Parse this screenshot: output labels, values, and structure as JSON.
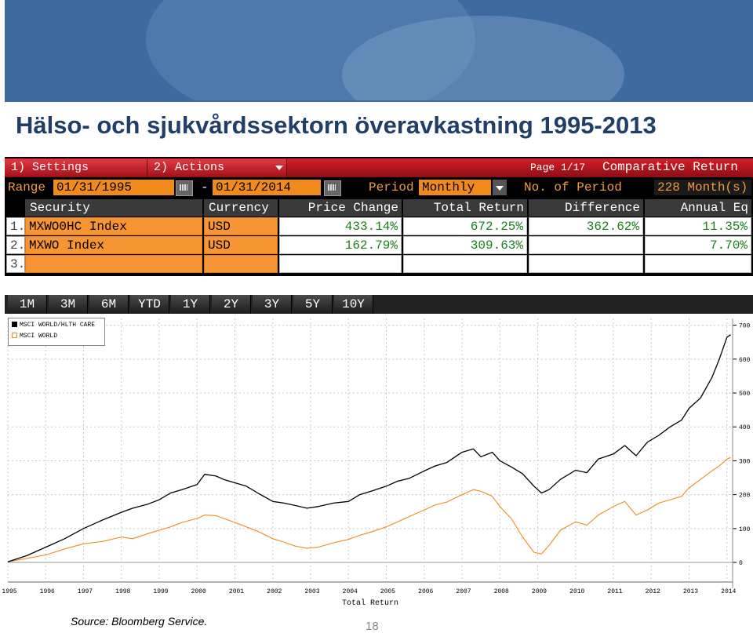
{
  "slide": {
    "title": "Hälso- och sjukvårdssektorn överavkastning 1995-2013",
    "source": "Source: Bloomberg Service.",
    "page_number": "18"
  },
  "terminal": {
    "menu": {
      "settings": "1) Settings",
      "actions": "2) Actions",
      "page": "Page 1/17",
      "function_title": "Comparative Return"
    },
    "range_label": "Range",
    "start_date": "01/31/1995",
    "date_separator": "-",
    "end_date": "01/31/2014",
    "period_label": "Period",
    "period_value": "Monthly",
    "periods_label": "No. of Period",
    "periods_value": "228 Month(s)",
    "columns": [
      "Security",
      "Currency",
      "Price Change",
      "Total Return",
      "Difference",
      "Annual Eq"
    ],
    "rows": [
      {
        "num": "1.",
        "security": "MXWO0HC Index",
        "currency": "USD",
        "price_change": "433.14%",
        "total_return": "672.25%",
        "difference": "362.62%",
        "annual_eq": "11.35%"
      },
      {
        "num": "2.",
        "security": "MXWO Index",
        "currency": "USD",
        "price_change": "162.79%",
        "total_return": "309.63%",
        "difference": "",
        "annual_eq": "7.70%"
      },
      {
        "num": "3.",
        "security": "",
        "currency": "",
        "price_change": "",
        "total_return": "",
        "difference": "",
        "annual_eq": ""
      }
    ],
    "tabs": [
      "1M",
      "3M",
      "6M",
      "YTD",
      "1Y",
      "2Y",
      "3Y",
      "5Y",
      "10Y"
    ]
  },
  "chart_data": {
    "type": "line",
    "xlabel": "Total Return",
    "x_ticks": [
      "1995",
      "1996",
      "1997",
      "1998",
      "1999",
      "2000",
      "2001",
      "2002",
      "2003",
      "2004",
      "2005",
      "2006",
      "2007",
      "2008",
      "2009",
      "2010",
      "2011",
      "2012",
      "2013",
      "2014"
    ],
    "y_ticks": [
      0,
      100,
      200,
      300,
      400,
      500,
      600,
      700
    ],
    "ylim": [
      -30,
      720
    ],
    "xlim": [
      1995.0,
      2014.15
    ],
    "grid": true,
    "legend_position": "top-left",
    "series": [
      {
        "name": "MSCI WORLD/HLTH CARE",
        "color": "#000000",
        "x": [
          1995.0,
          1995.5,
          1996.0,
          1996.5,
          1997.0,
          1997.5,
          1998.0,
          1998.3,
          1998.7,
          1999.0,
          1999.3,
          1999.6,
          2000.0,
          2000.2,
          2000.5,
          2000.7,
          2001.0,
          2001.3,
          2001.6,
          2002.0,
          2002.3,
          2002.6,
          2002.9,
          2003.2,
          2003.6,
          2004.0,
          2004.3,
          2004.6,
          2005.0,
          2005.3,
          2005.6,
          2006.0,
          2006.3,
          2006.6,
          2007.0,
          2007.3,
          2007.5,
          2007.8,
          2008.0,
          2008.3,
          2008.6,
          2008.9,
          2009.1,
          2009.3,
          2009.6,
          2010.0,
          2010.3,
          2010.6,
          2011.0,
          2011.3,
          2011.6,
          2011.9,
          2012.2,
          2012.5,
          2012.8,
          2013.0,
          2013.3,
          2013.6,
          2013.8,
          2014.0,
          2014.1
        ],
        "y": [
          2,
          20,
          45,
          70,
          100,
          125,
          148,
          160,
          172,
          185,
          205,
          215,
          230,
          260,
          255,
          245,
          235,
          225,
          205,
          180,
          175,
          168,
          160,
          165,
          175,
          180,
          200,
          210,
          225,
          240,
          248,
          270,
          285,
          295,
          325,
          335,
          312,
          325,
          300,
          282,
          262,
          225,
          205,
          215,
          245,
          272,
          265,
          305,
          320,
          345,
          315,
          355,
          375,
          400,
          420,
          455,
          485,
          545,
          600,
          665,
          672
        ]
      },
      {
        "name": "MSCI WORLD",
        "color": "#f08a1c",
        "x": [
          1995.0,
          1995.5,
          1996.0,
          1996.5,
          1997.0,
          1997.5,
          1998.0,
          1998.3,
          1998.7,
          1999.0,
          1999.3,
          1999.6,
          2000.0,
          2000.2,
          2000.5,
          2000.7,
          2001.0,
          2001.3,
          2001.6,
          2002.0,
          2002.3,
          2002.6,
          2002.9,
          2003.2,
          2003.6,
          2004.0,
          2004.3,
          2004.6,
          2005.0,
          2005.3,
          2005.6,
          2006.0,
          2006.3,
          2006.6,
          2007.0,
          2007.3,
          2007.5,
          2007.8,
          2008.0,
          2008.3,
          2008.6,
          2008.9,
          2009.1,
          2009.3,
          2009.6,
          2010.0,
          2010.3,
          2010.6,
          2011.0,
          2011.3,
          2011.6,
          2011.9,
          2012.2,
          2012.5,
          2012.8,
          2013.0,
          2013.3,
          2013.6,
          2013.8,
          2014.0,
          2014.1
        ],
        "y": [
          2,
          12,
          22,
          40,
          55,
          62,
          75,
          70,
          85,
          95,
          105,
          118,
          130,
          140,
          138,
          130,
          118,
          105,
          92,
          70,
          60,
          48,
          42,
          45,
          58,
          68,
          80,
          90,
          105,
          120,
          135,
          155,
          170,
          178,
          200,
          215,
          210,
          195,
          165,
          130,
          75,
          30,
          25,
          50,
          95,
          120,
          110,
          140,
          165,
          180,
          140,
          155,
          175,
          185,
          195,
          220,
          245,
          270,
          285,
          305,
          310
        ]
      }
    ]
  }
}
